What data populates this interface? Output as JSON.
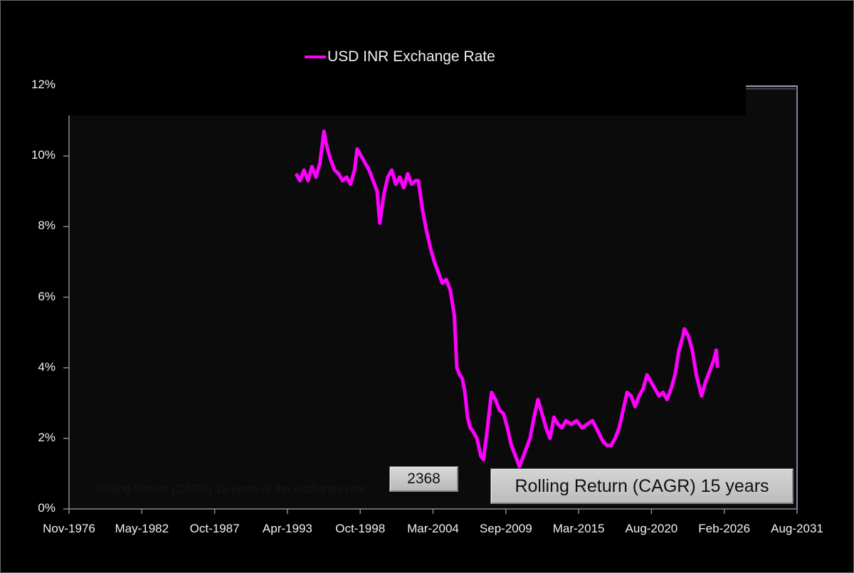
{
  "legend": {
    "series_label": "USD INR Exchange Rate",
    "series_color": "#ff00ff"
  },
  "y_axis": {
    "ticks": [
      "0%",
      "2%",
      "4%",
      "6%",
      "8%",
      "10%",
      "12%"
    ]
  },
  "x_axis": {
    "ticks": [
      "Nov-1976",
      "May-1982",
      "Oct-1987",
      "Apr-1993",
      "Oct-1998",
      "Mar-2004",
      "Sep-2009",
      "Mar-2015",
      "Aug-2020",
      "Feb-2026",
      "Aug-2031"
    ]
  },
  "annotations": {
    "count_box": "2368",
    "title_box": "Rolling Return (CAGR) 15 years",
    "faint_background_text": "Rolling Return (CAGR) 15 years of the exchange rate"
  },
  "chart_data": {
    "type": "line",
    "title": "Rolling Return (CAGR) 15 years",
    "xlabel": "",
    "ylabel": "",
    "ylim": [
      0,
      12
    ],
    "y_unit": "%",
    "xlim": [
      "Nov-1976",
      "Aug-2031"
    ],
    "grid": false,
    "legend_position": "top",
    "series": [
      {
        "name": "USD INR Exchange Rate",
        "color": "#ff00ff",
        "x": [
          1993.9,
          1994.2,
          1994.5,
          1994.8,
          1995.1,
          1995.4,
          1995.7,
          1996.0,
          1996.2,
          1996.5,
          1996.8,
          1997.1,
          1997.4,
          1997.7,
          1998.0,
          1998.3,
          1998.5,
          1998.8,
          1999.1,
          1999.4,
          1999.7,
          2000.0,
          2000.2,
          2000.5,
          2000.8,
          2001.1,
          2001.4,
          2001.7,
          2002.0,
          2002.3,
          2002.6,
          2002.9,
          2003.1,
          2003.4,
          2003.7,
          2004.0,
          2004.3,
          2004.6,
          2004.9,
          2005.2,
          2005.5,
          2005.8,
          2006.0,
          2006.2,
          2006.4,
          2006.6,
          2006.8,
          2007.0,
          2007.2,
          2007.5,
          2007.8,
          2008.0,
          2008.3,
          2008.6,
          2008.9,
          2009.2,
          2009.5,
          2009.8,
          2010.1,
          2010.4,
          2010.7,
          2011.0,
          2011.2,
          2011.5,
          2011.8,
          2012.1,
          2012.4,
          2012.7,
          2013.0,
          2013.3,
          2013.6,
          2013.9,
          2014.2,
          2014.6,
          2015.0,
          2015.4,
          2015.8,
          2016.2,
          2016.6,
          2017.0,
          2017.3,
          2017.6,
          2017.9,
          2018.2,
          2018.5,
          2018.8,
          2019.1,
          2019.4,
          2019.7,
          2020.0,
          2020.3,
          2020.6,
          2020.9,
          2021.2,
          2021.5,
          2021.8,
          2022.1,
          2022.4,
          2022.7,
          2023.0,
          2023.1,
          2023.4,
          2023.7,
          2024.0,
          2024.2,
          2024.4,
          2024.7,
          2025.0,
          2025.3,
          2025.5,
          2025.6
        ],
        "values": [
          9.5,
          9.3,
          9.6,
          9.3,
          9.7,
          9.4,
          9.8,
          10.7,
          10.3,
          9.9,
          9.6,
          9.5,
          9.3,
          9.4,
          9.2,
          9.6,
          10.2,
          10.0,
          9.8,
          9.6,
          9.3,
          9.0,
          8.1,
          8.9,
          9.4,
          9.6,
          9.2,
          9.4,
          9.1,
          9.5,
          9.2,
          9.3,
          9.3,
          8.5,
          7.9,
          7.4,
          7.0,
          6.7,
          6.4,
          6.5,
          6.2,
          5.5,
          4.0,
          3.8,
          3.7,
          3.3,
          2.6,
          2.3,
          2.2,
          2.0,
          1.5,
          1.4,
          2.3,
          3.3,
          3.1,
          2.8,
          2.7,
          2.3,
          1.8,
          1.5,
          1.2,
          1.5,
          1.7,
          2.0,
          2.6,
          3.1,
          2.7,
          2.3,
          2.0,
          2.6,
          2.4,
          2.3,
          2.5,
          2.4,
          2.5,
          2.3,
          2.4,
          2.5,
          2.2,
          1.9,
          1.8,
          1.8,
          2.0,
          2.3,
          2.8,
          3.3,
          3.2,
          2.9,
          3.2,
          3.4,
          3.8,
          3.6,
          3.4,
          3.2,
          3.3,
          3.1,
          3.4,
          3.8,
          4.5,
          4.9,
          5.1,
          4.9,
          4.5,
          3.8,
          3.5,
          3.2,
          3.6,
          3.9,
          4.2,
          4.5,
          4.0
        ]
      }
    ]
  }
}
